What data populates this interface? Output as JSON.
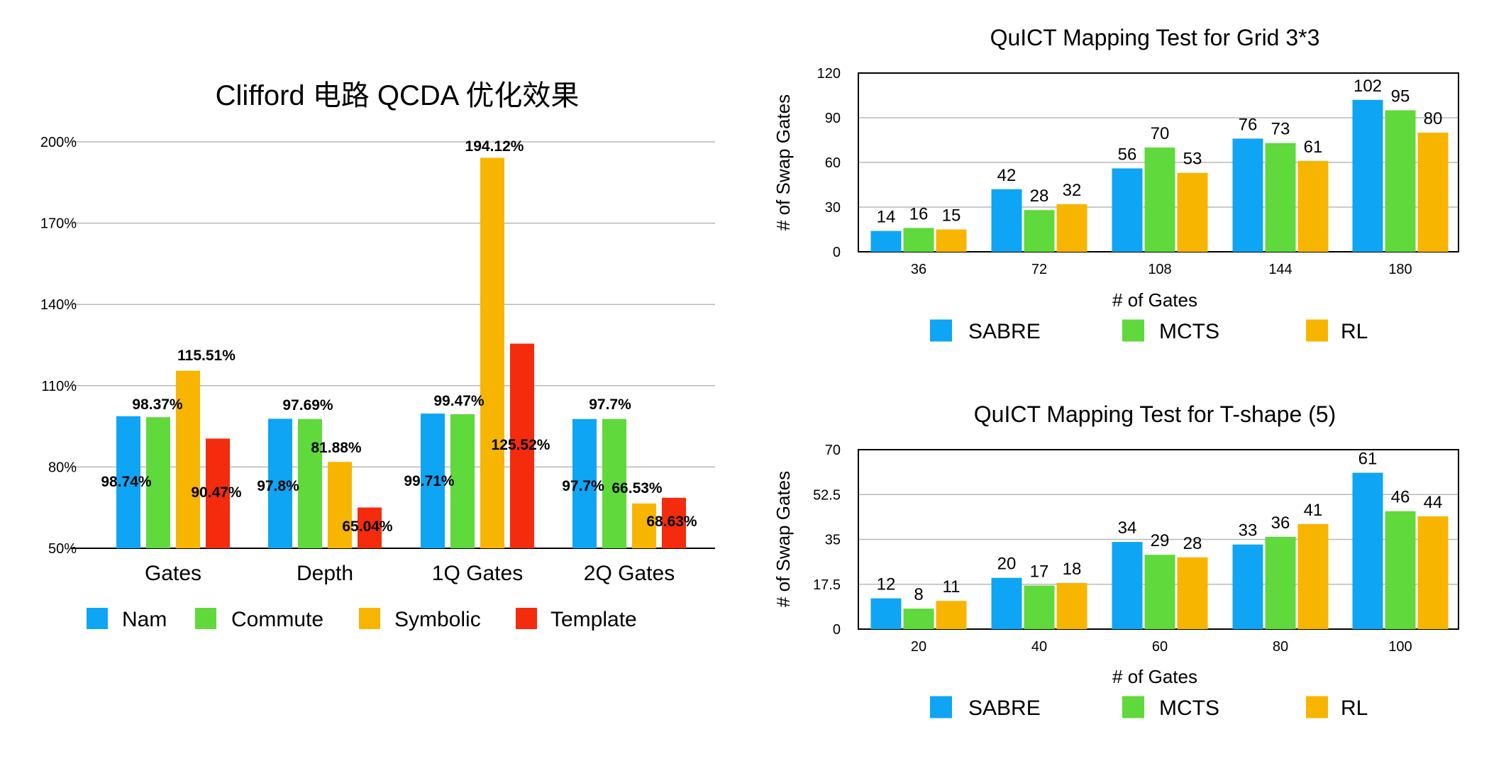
{
  "chart_data": [
    {
      "type": "bar",
      "title": "Clifford 电路 QCDA 优化效果",
      "xlabel": "",
      "ylabel": "",
      "categories": [
        "Gates",
        "Depth",
        "1Q Gates",
        "2Q Gates"
      ],
      "ylim": [
        50,
        200
      ],
      "yticks": [
        "50%",
        "80%",
        "110%",
        "140%",
        "170%",
        "200%"
      ],
      "ytick_values": [
        50,
        80,
        110,
        140,
        170,
        200
      ],
      "grid": true,
      "legend_position": "bottom",
      "series": [
        {
          "name": "Nam",
          "color": "#0ea5f5",
          "values": [
            98.74,
            97.8,
            99.71,
            97.7
          ],
          "labels": [
            "98.74%",
            "97.8%",
            "99.71%",
            "97.7%"
          ]
        },
        {
          "name": "Commute",
          "color": "#5fd93b",
          "values": [
            98.37,
            97.69,
            99.47,
            97.7
          ],
          "labels": [
            "98.37%",
            "97.69%",
            "99.47%",
            "97.7%"
          ]
        },
        {
          "name": "Symbolic",
          "color": "#f7b500",
          "values": [
            115.51,
            81.88,
            194.12,
            66.53
          ],
          "labels": [
            "115.51%",
            "81.88%",
            "194.12%",
            "66.53%"
          ]
        },
        {
          "name": "Template",
          "color": "#f42b0c",
          "values": [
            90.47,
            65.04,
            125.52,
            68.63
          ],
          "labels": [
            "90.47%",
            "65.04%",
            "125.52%",
            "68.63%"
          ]
        }
      ]
    },
    {
      "type": "bar",
      "title": "QuICT Mapping Test for Grid 3*3",
      "xlabel": "# of Gates",
      "ylabel": "# of Swap Gates",
      "categories": [
        "36",
        "72",
        "108",
        "144",
        "180"
      ],
      "ylim": [
        0,
        120
      ],
      "yticks": [
        "0",
        "30",
        "60",
        "90",
        "120"
      ],
      "ytick_values": [
        0,
        30,
        60,
        90,
        120
      ],
      "grid": true,
      "legend_position": "bottom",
      "series": [
        {
          "name": "SABRE",
          "color": "#0ea5f5",
          "values": [
            14,
            42,
            56,
            76,
            102
          ],
          "labels": [
            "14",
            "42",
            "56",
            "76",
            "102"
          ]
        },
        {
          "name": "MCTS",
          "color": "#5fd93b",
          "values": [
            16,
            28,
            70,
            73,
            95
          ],
          "labels": [
            "16",
            "28",
            "70",
            "73",
            "95"
          ]
        },
        {
          "name": "RL",
          "color": "#f7b500",
          "values": [
            15,
            32,
            53,
            61,
            80
          ],
          "labels": [
            "15",
            "32",
            "53",
            "61",
            "80"
          ]
        }
      ]
    },
    {
      "type": "bar",
      "title": "QuICT Mapping Test for T-shape (5)",
      "xlabel": "# of Gates",
      "ylabel": "# of Swap Gates",
      "categories": [
        "20",
        "40",
        "60",
        "80",
        "100"
      ],
      "ylim": [
        0,
        70
      ],
      "yticks": [
        "0",
        "17.5",
        "35",
        "52.5",
        "70"
      ],
      "ytick_values": [
        0,
        17.5,
        35,
        52.5,
        70
      ],
      "grid": true,
      "legend_position": "bottom",
      "series": [
        {
          "name": "SABRE",
          "color": "#0ea5f5",
          "values": [
            12,
            20,
            34,
            33,
            61
          ],
          "labels": [
            "12",
            "20",
            "34",
            "33",
            "61"
          ]
        },
        {
          "name": "MCTS",
          "color": "#5fd93b",
          "values": [
            8,
            17,
            29,
            36,
            46
          ],
          "labels": [
            "8",
            "17",
            "29",
            "36",
            "46"
          ]
        },
        {
          "name": "RL",
          "color": "#f7b500",
          "values": [
            11,
            18,
            28,
            41,
            44
          ],
          "labels": [
            "11",
            "18",
            "28",
            "41",
            "44"
          ]
        }
      ]
    }
  ]
}
